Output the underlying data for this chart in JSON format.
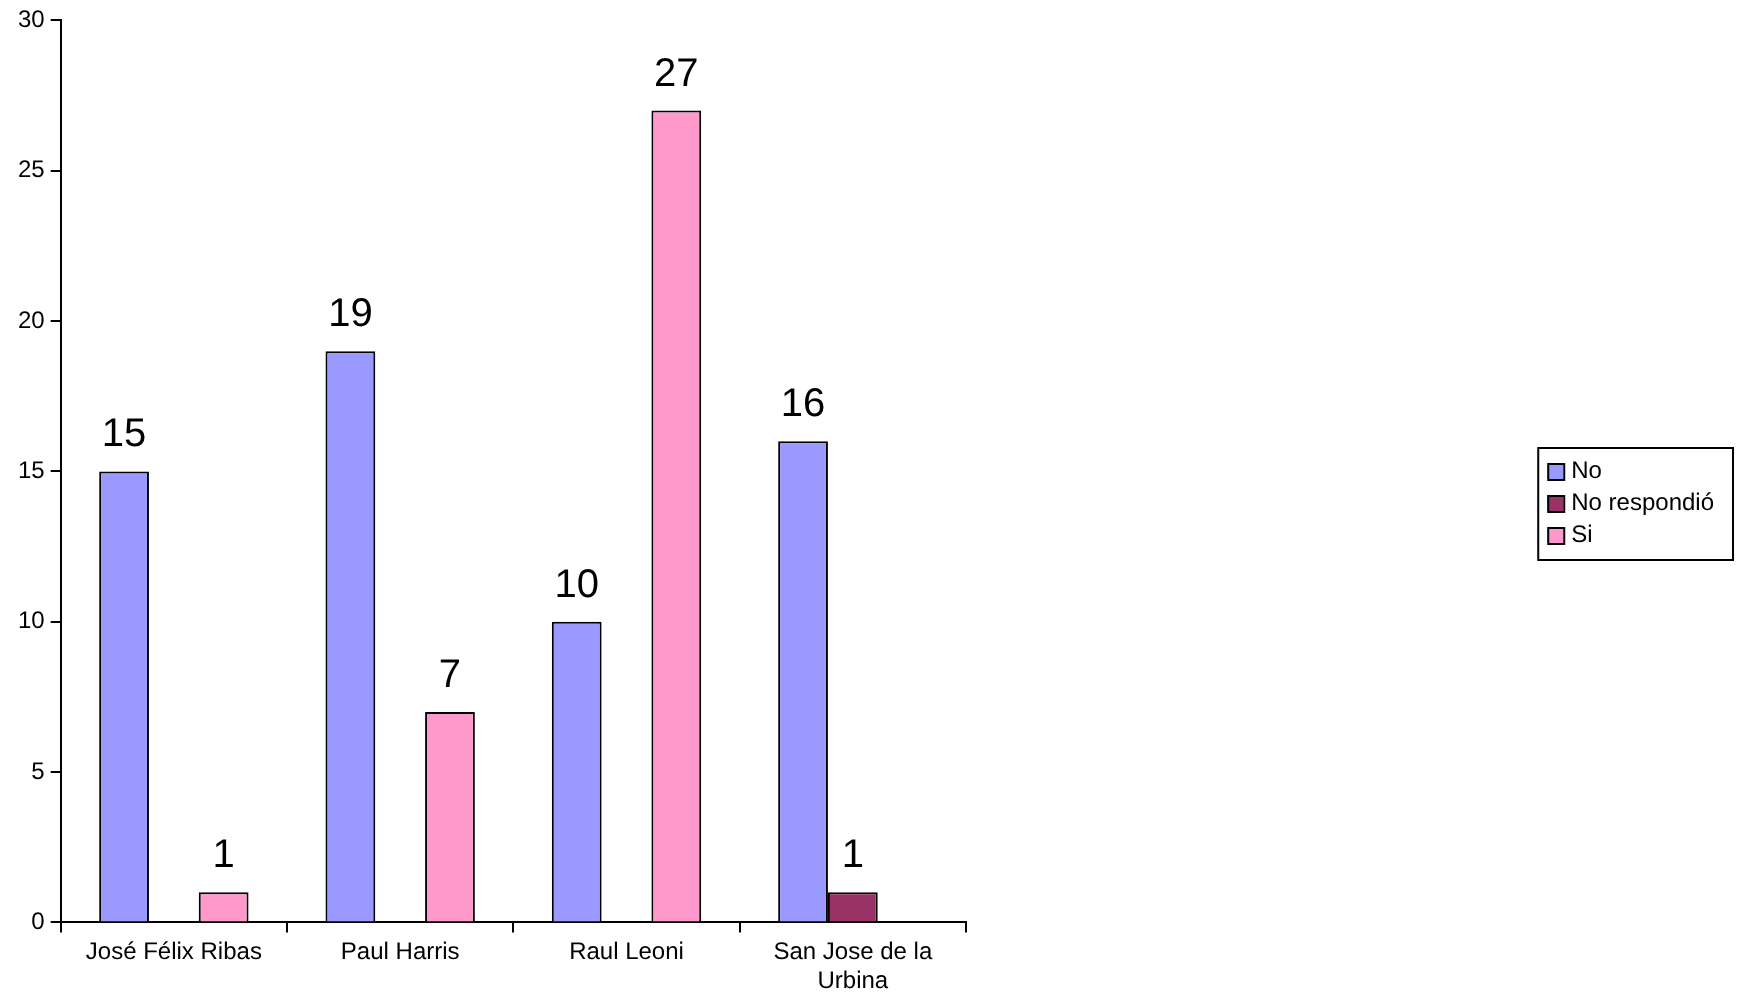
{
  "chart_data": {
    "type": "bar",
    "categories": [
      "José Félix Ribas",
      "Paul Harris",
      "Raul Leoni",
      "San Jose de la Urbina"
    ],
    "series": [
      {
        "name": "No",
        "color": "#9999ff",
        "values": [
          15,
          19,
          10,
          16
        ]
      },
      {
        "name": "No respondió",
        "color": "#993366",
        "values": [
          null,
          null,
          null,
          1
        ]
      },
      {
        "name": "Si",
        "color": "#ff99cc",
        "values": [
          1,
          7,
          27,
          null
        ]
      }
    ],
    "ylim": [
      0,
      30
    ],
    "yticks": [
      0,
      5,
      10,
      15,
      20,
      25,
      30
    ],
    "grid": false,
    "legend": "right",
    "data_labels": true
  }
}
